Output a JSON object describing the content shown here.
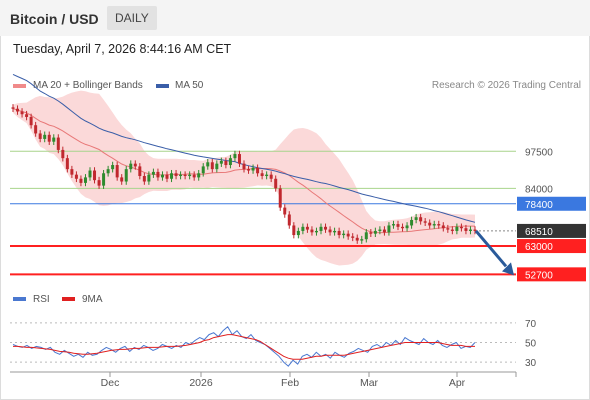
{
  "header": {
    "title": "Bitcoin / USD",
    "timeframe": "DAILY"
  },
  "timestamp": "Tuesday, April 7, 2026 8:44:16 AM CET",
  "legend": {
    "ma_bb_label": "MA 20 + Bollinger Bands",
    "ma50_label": "MA 50",
    "credit": "Research © 2026 Trading Central",
    "ma_bb_color": "#f08a8a",
    "ma50_color": "#3a5ea8"
  },
  "rsi_legend": {
    "rsi_label": "RSI",
    "ma9_label": "9MA",
    "rsi_color": "#4a78d0",
    "ma9_color": "#e02020"
  },
  "colors": {
    "up_candle": "#2e8b2e",
    "down_candle": "#c0282e",
    "bb_fill": "#fbd9d9",
    "support_line": "#ff2020",
    "resistance_green": "#a8d48c",
    "resistance_blue": "#3a78e0",
    "arrow": "#2a5a9a"
  },
  "chart_data": {
    "type": "candlestick",
    "x_ticks": [
      "Dec",
      "2026",
      "Feb",
      "Mar",
      "Apr"
    ],
    "price_levels": [
      {
        "label": "97500",
        "value": 97500,
        "kind": "resistance"
      },
      {
        "label": "84000",
        "value": 84000,
        "kind": "resistance"
      },
      {
        "label": "78400",
        "value": 78400,
        "kind": "pivot"
      },
      {
        "label": "68510",
        "value": 68510,
        "kind": "last"
      },
      {
        "label": "63000",
        "value": 63000,
        "kind": "support"
      },
      {
        "label": "52700",
        "value": 52700,
        "kind": "support"
      }
    ],
    "ylim": [
      47000,
      118000
    ],
    "close": [
      113000,
      112000,
      111000,
      110000,
      107000,
      104000,
      102000,
      103500,
      101000,
      102500,
      98000,
      95000,
      91000,
      89000,
      87500,
      86000,
      88000,
      90500,
      87000,
      85000,
      89500,
      91000,
      92500,
      88000,
      86500,
      91000,
      93000,
      92000,
      88500,
      86500,
      89000,
      90000,
      88000,
      89000,
      87500,
      89500,
      88500,
      89000,
      88500,
      89000,
      88000,
      89500,
      92000,
      93500,
      91000,
      93000,
      94000,
      92500,
      95000,
      96500,
      93000,
      91000,
      90500,
      91500,
      89500,
      88500,
      89000,
      87500,
      84000,
      77000,
      74500,
      70500,
      67000,
      68500,
      70000,
      69000,
      68000,
      68500,
      70000,
      69000,
      68000,
      68500,
      67000,
      67500,
      66500,
      66000,
      65000,
      65500,
      68000,
      67500,
      68500,
      69000,
      68000,
      70500,
      71000,
      70000,
      69500,
      70500,
      72500,
      73500,
      72000,
      71500,
      70500,
      71000,
      70500,
      69500,
      69000,
      68500,
      70000,
      69500,
      68500,
      69000,
      68510
    ],
    "rsi": {
      "ylim": [
        20,
        80
      ],
      "levels": [
        {
          "label": "70",
          "value": 70
        },
        {
          "label": "50",
          "value": 50
        },
        {
          "label": "30",
          "value": 30
        }
      ],
      "rsi": [
        48,
        46,
        45,
        47,
        44,
        46,
        45,
        43,
        45,
        40,
        38,
        42,
        39,
        36,
        38,
        35,
        40,
        37,
        38,
        42,
        45,
        43,
        40,
        44,
        46,
        41,
        45,
        43,
        47,
        45,
        42,
        44,
        48,
        46,
        44,
        47,
        45,
        50,
        48,
        52,
        55,
        53,
        58,
        60,
        56,
        62,
        66,
        58,
        62,
        56,
        54,
        58,
        52,
        50,
        48,
        44,
        40,
        36,
        30,
        26,
        32,
        28,
        36,
        38,
        35,
        40,
        36,
        38,
        34,
        40,
        37,
        35,
        39,
        41,
        44,
        42,
        40,
        46,
        48,
        45,
        50,
        47,
        52,
        48,
        55,
        52,
        50,
        48,
        54,
        50,
        48,
        52,
        47,
        45,
        48,
        50,
        44,
        46,
        45,
        50
      ],
      "ma9": [
        46,
        46,
        45.5,
        45,
        45,
        44.5,
        44,
        43.5,
        43,
        42,
        41,
        40.5,
        40,
        39,
        38.5,
        38,
        38,
        38.5,
        39,
        40,
        41,
        42,
        42.5,
        43,
        43,
        43.5,
        44,
        44,
        44.5,
        45,
        45,
        45,
        45.5,
        46,
        46,
        46,
        46.5,
        47,
        48,
        49,
        50,
        52,
        53,
        55,
        56,
        57,
        58,
        58,
        57,
        56,
        55,
        54,
        53,
        51,
        48,
        45,
        42,
        39,
        36,
        34,
        33,
        33,
        33,
        34,
        35,
        36,
        36,
        37,
        37,
        37,
        37,
        37,
        38,
        39,
        40,
        41,
        42,
        43,
        44,
        45,
        46,
        47,
        48,
        49,
        50,
        50,
        50,
        50,
        50,
        50,
        50,
        50,
        49,
        48,
        47,
        47,
        47,
        46,
        46,
        46
      ]
    }
  }
}
